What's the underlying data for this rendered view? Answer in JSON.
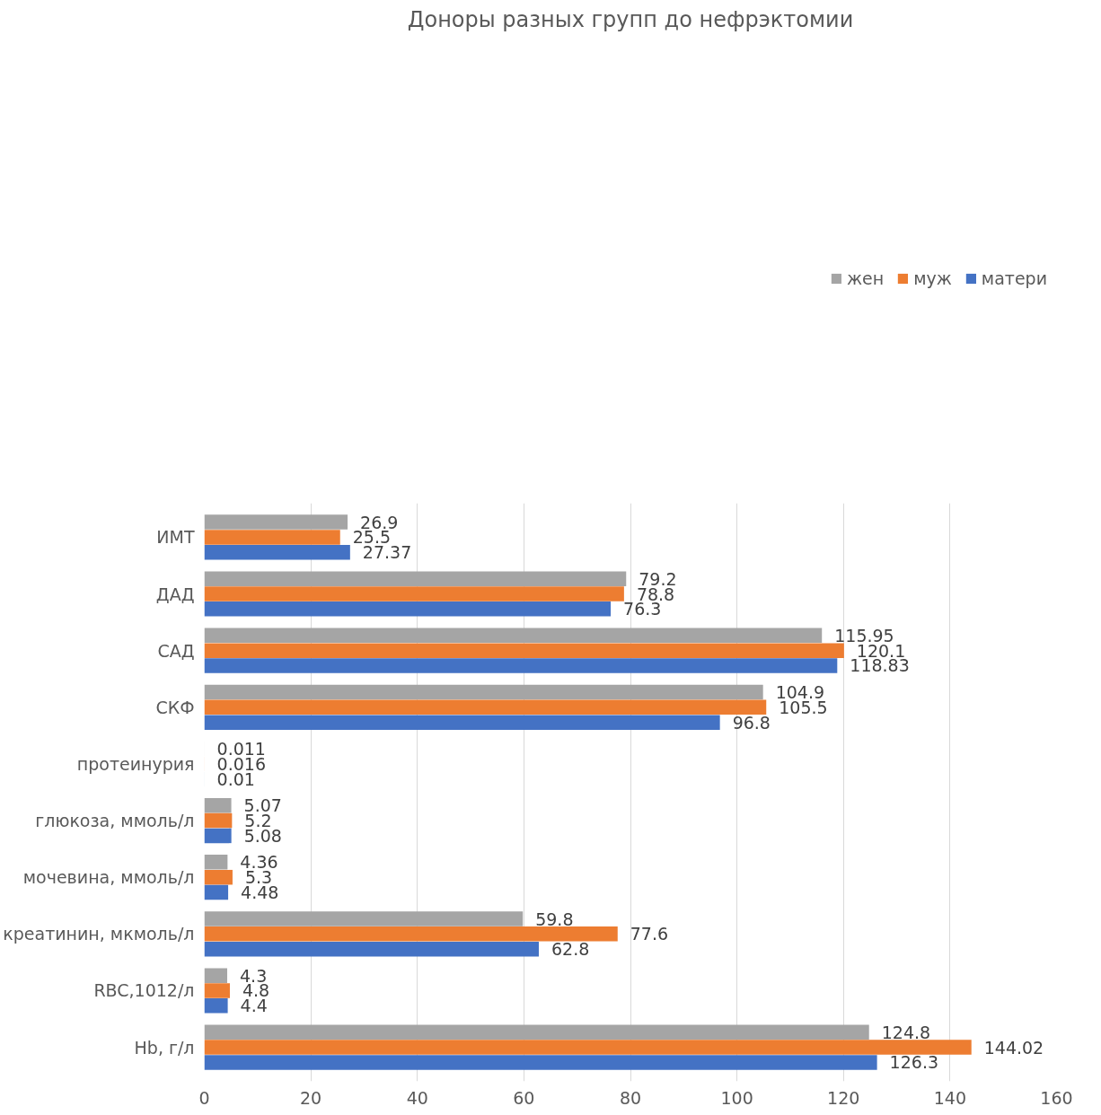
{
  "chart_data": {
    "type": "bar",
    "orientation": "horizontal",
    "title": "Доноры разных групп до нефрэктомии",
    "categories": [
      "ИМТ",
      "ДАД",
      "САД",
      "СКФ",
      "протеинурия",
      "глюкоза, ммоль/л",
      "мочевина, ммоль/л",
      "креатинин, мкмоль/л",
      "RBC,1012/л",
      "Hb, г/л"
    ],
    "series": [
      {
        "name": "жен",
        "color": "#a5a5a5",
        "values": [
          26.9,
          79.2,
          115.95,
          104.9,
          0.011,
          5.07,
          4.36,
          59.8,
          4.3,
          124.8
        ]
      },
      {
        "name": "муж",
        "color": "#ed7d31",
        "values": [
          25.5,
          78.8,
          120.1,
          105.5,
          0.016,
          5.2,
          5.3,
          77.6,
          4.8,
          144.02
        ]
      },
      {
        "name": "матери",
        "color": "#4472c4",
        "values": [
          27.37,
          76.3,
          118.83,
          96.8,
          0.01,
          5.08,
          4.48,
          62.8,
          4.4,
          126.3
        ]
      }
    ],
    "xlim": [
      0,
      160
    ],
    "xticks": [
      0,
      20,
      40,
      60,
      80,
      100,
      120,
      140,
      160
    ],
    "grid": "x",
    "legend": "top right",
    "data_labels": true
  }
}
